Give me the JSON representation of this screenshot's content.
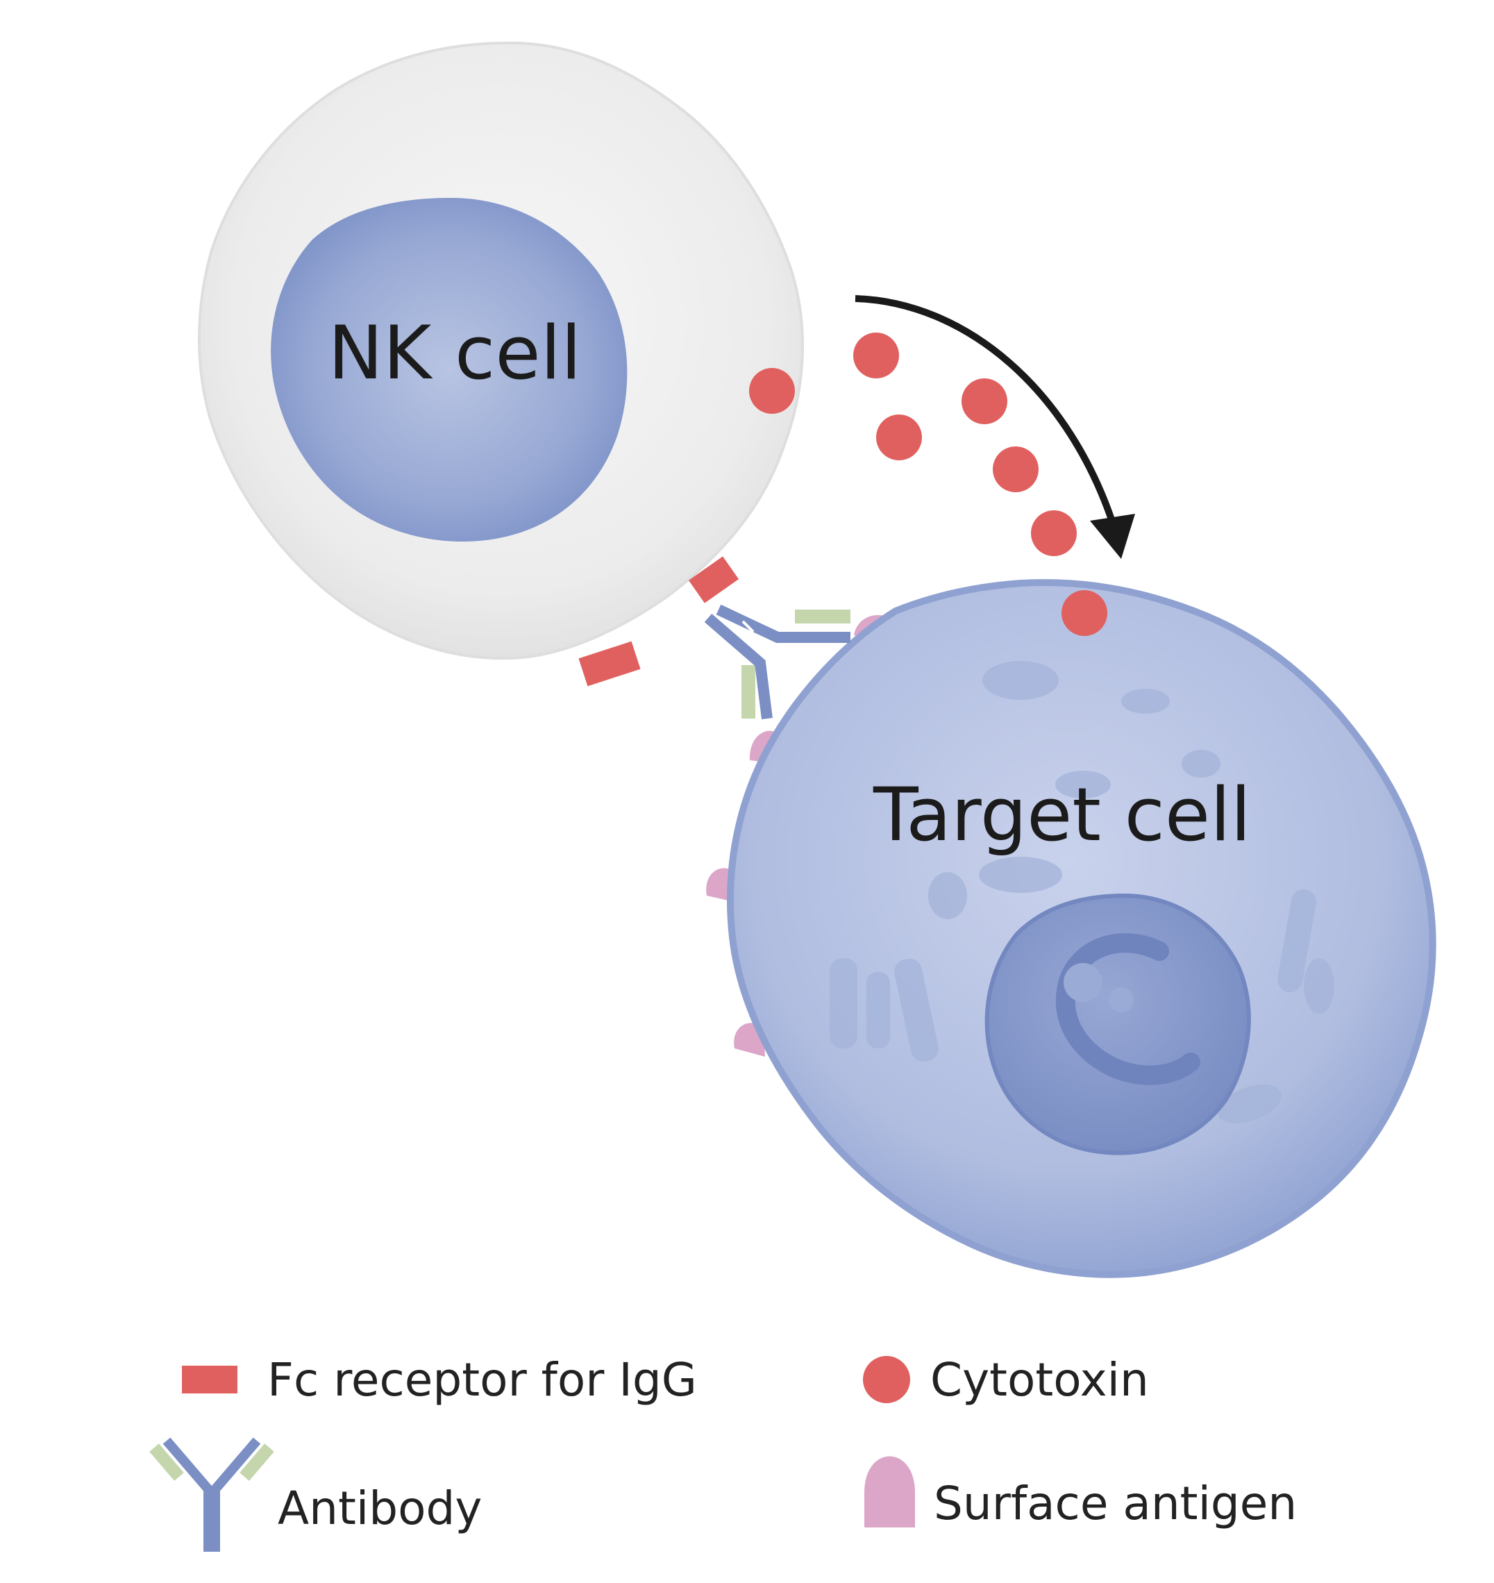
{
  "cells": {
    "nk": {
      "label": "NK cell"
    },
    "target": {
      "label": "Target cell"
    }
  },
  "legend": {
    "fc_receptor": "Fc receptor for IgG",
    "cytotoxin": "Cytotoxin",
    "antibody": "Antibody",
    "surface_antigen": "Surface antigen"
  },
  "colors": {
    "fc_receptor": "#e0605f",
    "cytotoxin": "#e0605f",
    "antibody_heavy": "#7b8fc4",
    "antibody_light": "#c5d6ad",
    "surface_antigen": "#dba6c8",
    "nk_cytoplasm": "#ececec",
    "nk_nucleus": "#8fa2d0",
    "target_cytoplasm": "#b3bfe0",
    "target_nucleus": "#8697c8",
    "arrow": "#1a1a1a"
  }
}
